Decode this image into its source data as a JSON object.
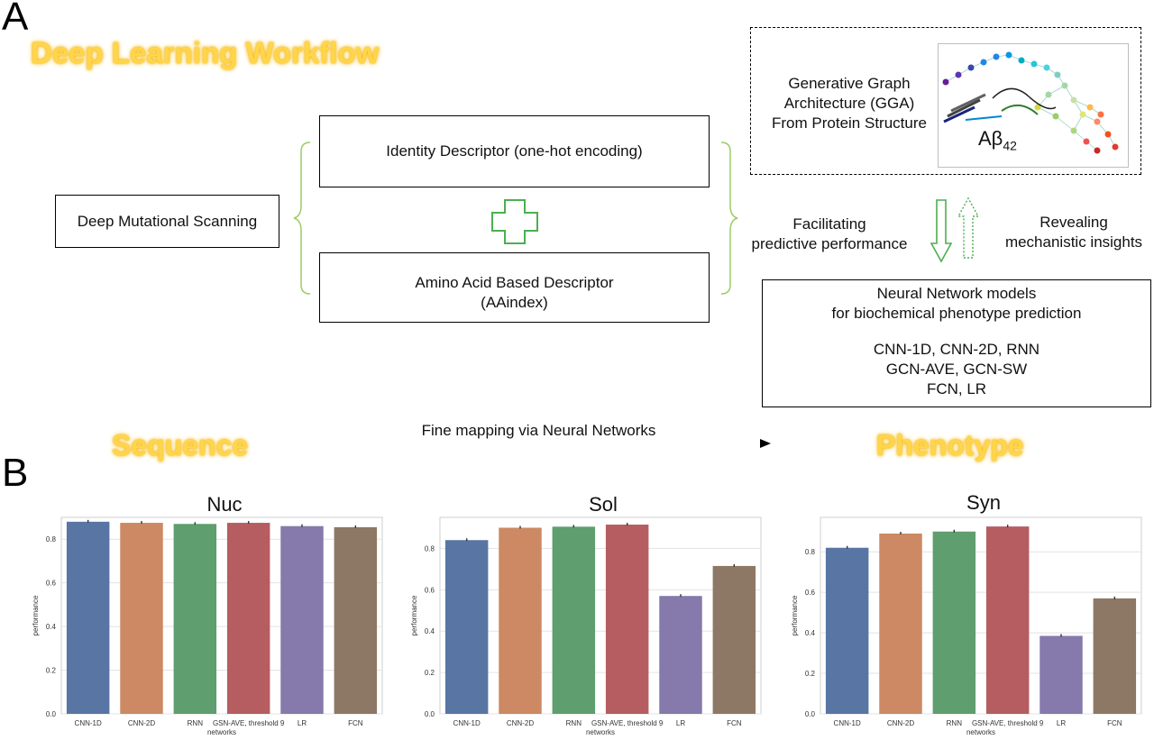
{
  "panel_a": {
    "letter": "A",
    "workflow_title": "Deep Learning Workflow",
    "dms_label": "Deep Mutational Scanning",
    "identity_descriptor": "Identity Descriptor (one-hot encoding)",
    "aa_descriptor_line1": "Amino Acid Based Descriptor",
    "aa_descriptor_line2": "(AAindex)",
    "gga_line1": "Generative Graph",
    "gga_line2": "Architecture (GGA)",
    "gga_line3": "From Protein Structure",
    "abeta_label": "Aβ",
    "abeta_sub": "42",
    "facilitating_line1": "Facilitating",
    "facilitating_line2": "predictive performance",
    "revealing_line1": "Revealing",
    "revealing_line2": "mechanistic insights",
    "nn_line1": "Neural Network models",
    "nn_line2": "for biochemical phenotype prediction",
    "nn_line3": "CNN-1D, CNN-2D, RNN",
    "nn_line4": "GCN-AVE, GCN-SW",
    "nn_line5": "FCN, LR",
    "sequence_label": "Sequence",
    "phenotype_label": "Phenotype",
    "mapping_label": "Fine mapping via Neural Networks",
    "colors": {
      "glow": "#FFD54A",
      "plus": "#4CAF50",
      "bracket": "#8BC34A"
    }
  },
  "panel_b": {
    "letter": "B"
  },
  "chart_data": [
    {
      "type": "bar",
      "title": "Nuc",
      "xlabel": "networks",
      "ylabel": "performance",
      "categories": [
        "CNN-1D",
        "CNN-2D",
        "RNN",
        "GSN-AVE, threshold 9",
        "LR",
        "FCN"
      ],
      "values": [
        0.88,
        0.875,
        0.87,
        0.875,
        0.86,
        0.855
      ],
      "ylim": [
        0,
        0.9
      ],
      "yticks": [
        0.0,
        0.2,
        0.4,
        0.6,
        0.8
      ],
      "ytick_labels": [
        "0.0",
        "0.2",
        "0.4",
        "0.6",
        "0.8"
      ],
      "colors": [
        "#5875A4",
        "#CC8963",
        "#5F9E6E",
        "#B55D60",
        "#857AAB",
        "#8D7866"
      ],
      "grid": true
    },
    {
      "type": "bar",
      "title": "Sol",
      "xlabel": "networks",
      "ylabel": "performance",
      "categories": [
        "CNN-1D",
        "CNN-2D",
        "RNN",
        "GSN-AVE, threshold 9",
        "LR",
        "FCN"
      ],
      "values": [
        0.84,
        0.9,
        0.905,
        0.915,
        0.57,
        0.715
      ],
      "ylim": [
        0,
        0.95
      ],
      "yticks": [
        0.0,
        0.2,
        0.4,
        0.6,
        0.8
      ],
      "ytick_labels": [
        "0.0",
        "0.2",
        "0.4",
        "0.6",
        "0.8"
      ],
      "colors": [
        "#5875A4",
        "#CC8963",
        "#5F9E6E",
        "#B55D60",
        "#857AAB",
        "#8D7866"
      ],
      "grid": true
    },
    {
      "type": "bar",
      "title": "Syn",
      "xlabel": "networks",
      "ylabel": "performance",
      "categories": [
        "CNN-1D",
        "CNN-2D",
        "RNN",
        "GSN-AVE, threshold 9",
        "LR",
        "FCN"
      ],
      "values": [
        0.82,
        0.89,
        0.9,
        0.925,
        0.385,
        0.57
      ],
      "ylim": [
        0,
        0.97
      ],
      "yticks": [
        0.0,
        0.2,
        0.4,
        0.6,
        0.8
      ],
      "ytick_labels": [
        "0.0",
        "0.2",
        "0.4",
        "0.6",
        "0.8"
      ],
      "colors": [
        "#5875A4",
        "#CC8963",
        "#5F9E6E",
        "#B55D60",
        "#857AAB",
        "#8D7866"
      ],
      "grid": true
    }
  ]
}
